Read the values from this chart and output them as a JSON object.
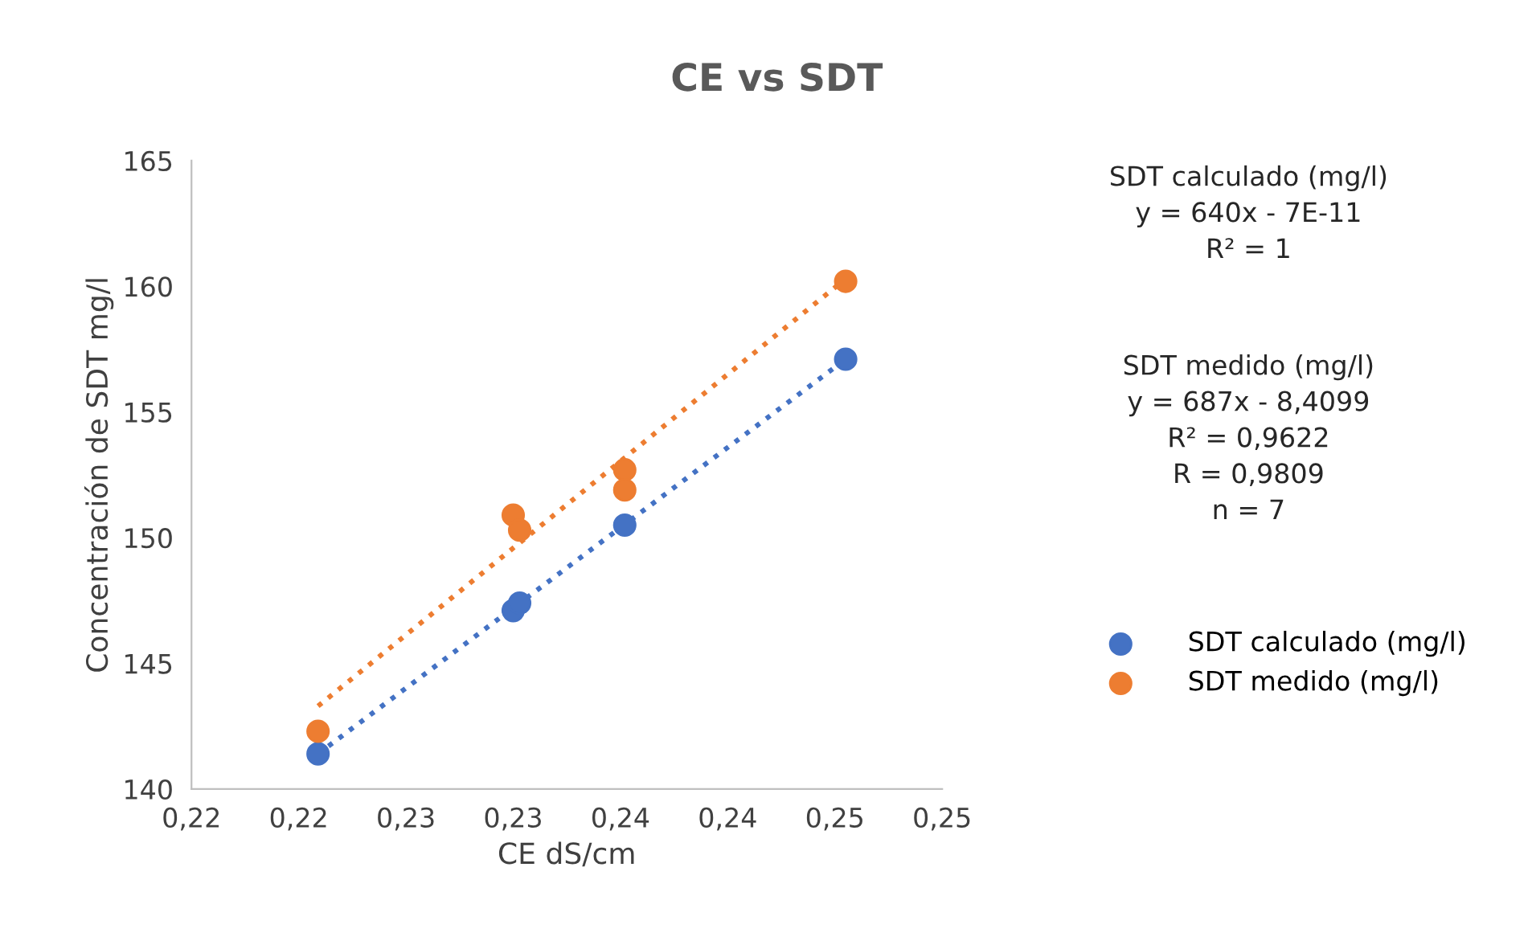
{
  "chart_data": {
    "type": "scatter",
    "title": "CE vs SDT",
    "xlabel": "CE dS/cm",
    "ylabel": "Concentración de SDT mg/l",
    "xlim": [
      0.215,
      0.25
    ],
    "xticks": [
      {
        "value": 0.215,
        "label": "0,22"
      },
      {
        "value": 0.22,
        "label": "0,22"
      },
      {
        "value": 0.225,
        "label": "0,23"
      },
      {
        "value": 0.23,
        "label": "0,23"
      },
      {
        "value": 0.235,
        "label": "0,24"
      },
      {
        "value": 0.24,
        "label": "0,24"
      },
      {
        "value": 0.245,
        "label": "0,25"
      },
      {
        "value": 0.25,
        "label": "0,25"
      }
    ],
    "ylim": [
      140,
      165
    ],
    "yticks": [
      140,
      145,
      150,
      155,
      160,
      165
    ],
    "grid": false,
    "legend": "right",
    "marker": "circle",
    "series": [
      {
        "name": "SDT calculado (mg/l)",
        "color": "#4472c4",
        "x": [
          0.2209,
          0.23,
          0.2303,
          0.2352,
          0.2455
        ],
        "values": [
          141.4,
          147.1,
          147.4,
          150.5,
          157.1
        ]
      },
      {
        "name": "SDT medido (mg/l)",
        "color": "#ed7d31",
        "x": [
          0.2209,
          0.23,
          0.2303,
          0.2352,
          0.2352,
          0.2455
        ],
        "values": [
          142.3,
          150.9,
          150.3,
          152.7,
          151.9,
          160.2
        ]
      },
      {
        "type": "line",
        "color": "#4472c4",
        "line_style": "dotted",
        "marker": "none",
        "x": [
          0.2209,
          0.2455
        ],
        "values": [
          141.4,
          157.1
        ]
      },
      {
        "type": "line",
        "color": "#ed7d31",
        "line_style": "dotted",
        "marker": "none",
        "x": [
          0.2209,
          0.2455
        ],
        "values": [
          143.3,
          160.3
        ]
      }
    ],
    "annotations": [
      "SDT calculado (mg/l)\ny = 640x - 7E-11\nR² = 1",
      "SDT medido (mg/l)\ny = 687x - 8,4099\nR² = 0,9622\nR = 0,9809\nn = 7"
    ]
  }
}
